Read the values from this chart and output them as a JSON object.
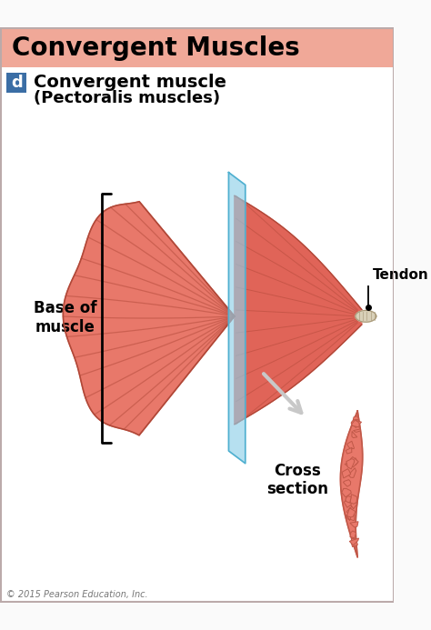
{
  "title": "Convergent Muscles",
  "title_bg": "#F0A898",
  "subtitle_label": "d",
  "subtitle_label_bg": "#3B6EA5",
  "subtitle_line1": "Convergent muscle",
  "subtitle_line2": "(Pectoralis muscles)",
  "label_base": "Base of\nmuscle",
  "label_tendon": "Tendon",
  "label_cross": "Cross\nsection",
  "copyright": "© 2015 Pearson Education, Inc.",
  "bg_color": "#FAFAFA",
  "muscle_color": "#E8786A",
  "muscle_mid": "#E06458",
  "muscle_light": "#F0A090",
  "muscle_dark": "#B04838",
  "muscle_shadow": "#C05848",
  "tendon_color": "#D8D0B8",
  "tendon_dark": "#A89878",
  "blue_plane_color": "#90D0E8",
  "cross_color": "#E8786A",
  "cross_dark": "#C05848",
  "arrow_color": "#C8C8C8"
}
